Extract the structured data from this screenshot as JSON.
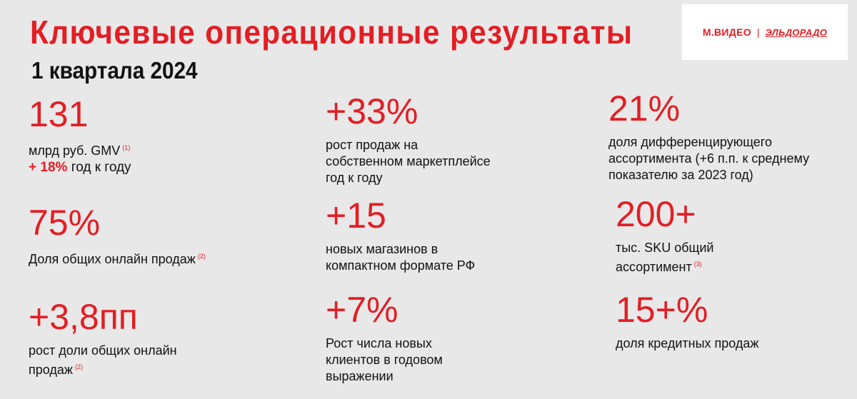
{
  "header": {
    "title": "Ключевые операционные результаты",
    "subtitle": "1 квартала 2024"
  },
  "logo": {
    "brand1": "М.ВИДЕО",
    "separator": "|",
    "brand2": "ЭЛЬДОРАДО"
  },
  "colors": {
    "accent": "#e31e24",
    "text": "#111111",
    "background": "#e8e8e8"
  },
  "metrics": [
    {
      "value": "131",
      "lines": [
        "млрд руб. GMV"
      ],
      "note": "(1)",
      "growth_value": "+ 18%",
      "growth_text": "год к году"
    },
    {
      "value": "+33%",
      "lines": [
        "рост продаж на",
        "собственном маркетплейсе",
        "год к году"
      ]
    },
    {
      "value": "21%",
      "lines": [
        "доля дифференцирующего",
        "ассортимента (+6 п.п. к среднему",
        "показателю за 2023 год)"
      ]
    },
    {
      "value": "75%",
      "lines": [
        "Доля общих онлайн продаж"
      ],
      "note": "(2)"
    },
    {
      "value": "+15",
      "lines": [
        "новых магазинов в",
        "компактном формате РФ"
      ]
    },
    {
      "value": "200+",
      "lines": [
        "тыс. SKU общий",
        "ассортимент"
      ],
      "note": "(3)"
    },
    {
      "value": "+3,8пп",
      "lines": [
        "рост доли общих онлайн",
        "продаж"
      ],
      "note": "(2)"
    },
    {
      "value": "+7%",
      "lines": [
        "Рост числа новых",
        "клиентов в годовом",
        "выражении"
      ]
    },
    {
      "value": "15+%",
      "lines": [
        "доля кредитных продаж"
      ]
    }
  ]
}
